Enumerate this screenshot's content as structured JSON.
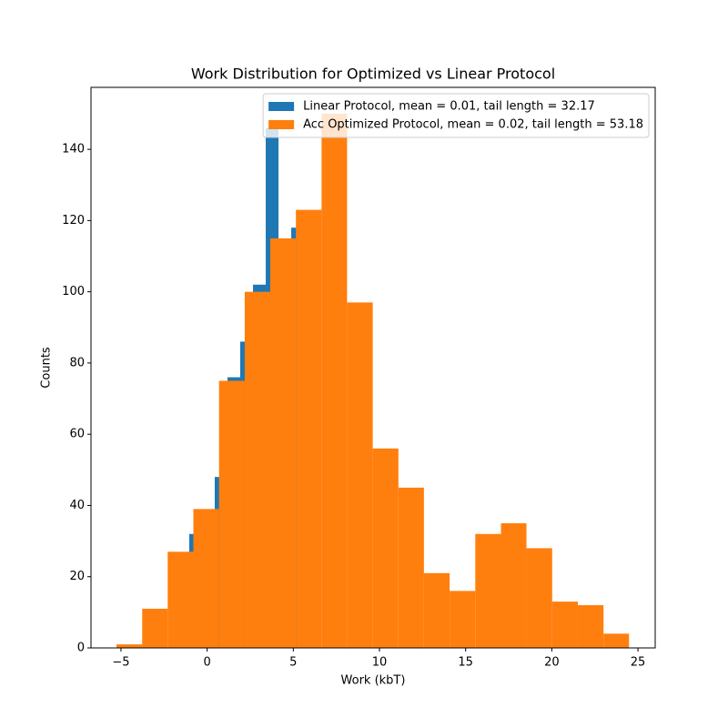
{
  "chart_data": {
    "type": "histogram",
    "title": "Work Distribution for Optimized vs Linear Protocol",
    "xlabel": "Work (kbT)",
    "ylabel": "Counts",
    "xlim": [
      -6.74,
      26.0
    ],
    "ylim": [
      0,
      157.4
    ],
    "xticks": [
      {
        "value": -5,
        "label": "−5"
      },
      0,
      5,
      10,
      15,
      20,
      25
    ],
    "yticks": [
      0,
      20,
      40,
      60,
      80,
      100,
      120,
      140
    ],
    "legend": "upper right",
    "series": [
      {
        "name": "Linear Protocol, mean = 0.01, tail length = 32.17",
        "color": "#1f77b4",
        "bins": [
          -1.04,
          -0.3,
          0.44,
          1.18,
          1.92,
          2.66,
          3.4,
          4.14,
          4.88,
          5.62
        ],
        "values": [
          32,
          35,
          48,
          76,
          86,
          102,
          146,
          110,
          118
        ]
      },
      {
        "name": "Acc Optimized Protocol, mean = 0.02, tail length = 53.18",
        "color": "#ff7f0e",
        "bins": [
          -5.26,
          -3.77,
          -2.29,
          -0.8,
          0.69,
          2.18,
          3.66,
          5.15,
          6.64,
          8.12,
          9.61,
          11.1,
          12.58,
          14.07,
          15.56,
          17.05,
          18.53,
          20.02,
          21.51,
          23.0,
          24.48
        ],
        "values": [
          1,
          11,
          27,
          39,
          75,
          100,
          115,
          123,
          150,
          97,
          56,
          45,
          21,
          16,
          32,
          35,
          28,
          13,
          12,
          4
        ]
      }
    ]
  }
}
